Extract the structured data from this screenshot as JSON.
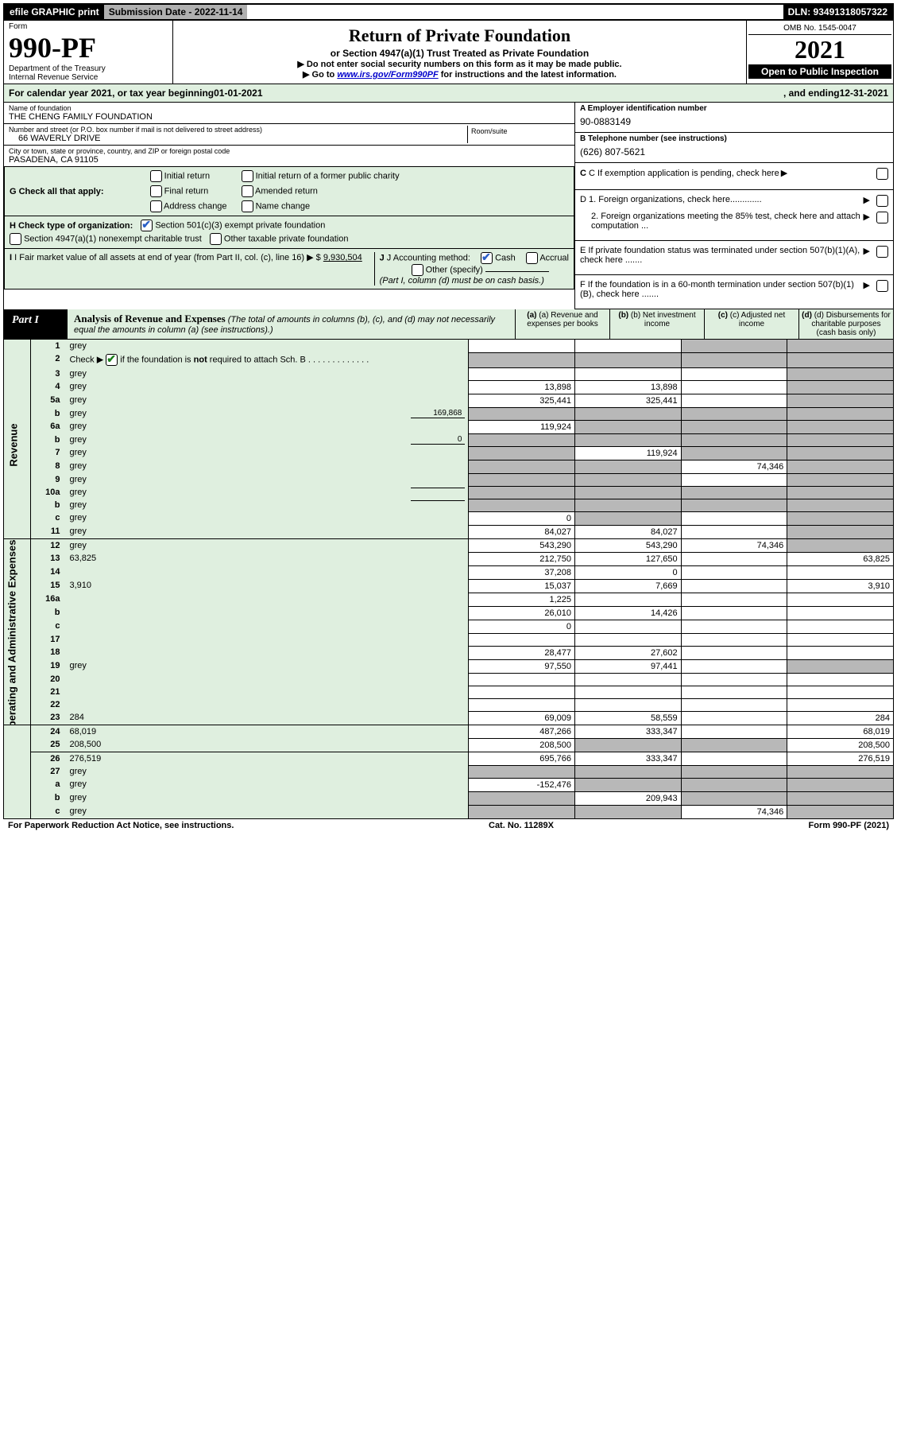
{
  "topbar": {
    "efile": "efile GRAPHIC print",
    "submission": "Submission Date - 2022-11-14",
    "dln": "DLN: 93491318057322"
  },
  "header": {
    "form_label": "Form",
    "form_no": "990-PF",
    "dept": "Department of the Treasury",
    "irs": "Internal Revenue Service",
    "title": "Return of Private Foundation",
    "subtitle": "or Section 4947(a)(1) Trust Treated as Private Foundation",
    "note1": "▶ Do not enter social security numbers on this form as it may be made public.",
    "note2_pre": "▶ Go to ",
    "note2_link": "www.irs.gov/Form990PF",
    "note2_post": " for instructions and the latest information.",
    "omb": "OMB No. 1545-0047",
    "year": "2021",
    "open": "Open to Public Inspection"
  },
  "calendar": {
    "pre": "For calendar year 2021, or tax year beginning ",
    "begin": "01-01-2021",
    "mid": " , and ending ",
    "end": "12-31-2021"
  },
  "entity": {
    "name_label": "Name of foundation",
    "name": "THE CHENG FAMILY FOUNDATION",
    "addr_label": "Number and street (or P.O. box number if mail is not delivered to street address)",
    "addr": "66 WAVERLY DRIVE",
    "room_label": "Room/suite",
    "city_label": "City or town, state or province, country, and ZIP or foreign postal code",
    "city": "PASADENA, CA  91105",
    "ein_label": "A Employer identification number",
    "ein": "90-0883149",
    "phone_label": "B Telephone number (see instructions)",
    "phone": "(626) 807-5621",
    "c_label": "C If exemption application is pending, check here",
    "d1": "D 1. Foreign organizations, check here.............",
    "d2": "2. Foreign organizations meeting the 85% test, check here and attach computation ...",
    "e": "E  If private foundation status was terminated under section 507(b)(1)(A), check here .......",
    "f": "F  If the foundation is in a 60-month termination under section 507(b)(1)(B), check here .......",
    "g_label": "G Check all that apply:",
    "g_opts": [
      "Initial return",
      "Final return",
      "Address change",
      "Initial return of a former public charity",
      "Amended return",
      "Name change"
    ],
    "h_label": "H Check type of organization:",
    "h1": "Section 501(c)(3) exempt private foundation",
    "h2": "Section 4947(a)(1) nonexempt charitable trust",
    "h3": "Other taxable private foundation",
    "i_label": "I Fair market value of all assets at end of year (from Part II, col. (c), line 16) ▶ $",
    "i_val": "9,930,504",
    "j_label": "J Accounting method:",
    "j_cash": "Cash",
    "j_accrual": "Accrual",
    "j_other": "Other (specify)",
    "j_note": "(Part I, column (d) must be on cash basis.)"
  },
  "part1": {
    "label": "Part I",
    "title": "Analysis of Revenue and Expenses",
    "title_note": "(The total of amounts in columns (b), (c), and (d) may not necessarily equal the amounts in column (a) (see instructions).)",
    "col_a": "(a)  Revenue and expenses per books",
    "col_b": "(b)  Net investment income",
    "col_c": "(c)  Adjusted net income",
    "col_d": "(d)  Disbursements for charitable purposes (cash basis only)"
  },
  "side": {
    "revenue": "Revenue",
    "expenses": "Operating and Administrative Expenses"
  },
  "rows": [
    {
      "n": "1",
      "d": "grey",
      "wrap": true,
      "a": "",
      "b": "",
      "c": "grey"
    },
    {
      "n": "2",
      "d": "grey",
      "wrap": true,
      "a": "grey",
      "b": "grey",
      "c": "grey",
      "html": true
    },
    {
      "n": "3",
      "d": "grey",
      "a": "",
      "b": "",
      "c": ""
    },
    {
      "n": "4",
      "d": "grey",
      "a": "13,898",
      "b": "13,898",
      "c": ""
    },
    {
      "n": "5a",
      "d": "grey",
      "a": "325,441",
      "b": "325,441",
      "c": ""
    },
    {
      "n": "b",
      "d": "grey",
      "inline": "169,868",
      "a": "grey",
      "b": "grey",
      "c": "grey"
    },
    {
      "n": "6a",
      "d": "grey",
      "a": "119,924",
      "b": "grey",
      "c": "grey"
    },
    {
      "n": "b",
      "d": "grey",
      "inline": "0",
      "a": "grey",
      "b": "grey",
      "c": "grey"
    },
    {
      "n": "7",
      "d": "grey",
      "a": "grey",
      "b": "119,924",
      "c": "grey"
    },
    {
      "n": "8",
      "d": "grey",
      "a": "grey",
      "b": "grey",
      "c": "74,346"
    },
    {
      "n": "9",
      "d": "grey",
      "a": "grey",
      "b": "grey",
      "c": ""
    },
    {
      "n": "10a",
      "d": "grey",
      "inline": "",
      "a": "grey",
      "b": "grey",
      "c": "grey"
    },
    {
      "n": "b",
      "d": "grey",
      "inline": "",
      "a": "grey",
      "b": "grey",
      "c": "grey"
    },
    {
      "n": "c",
      "d": "grey",
      "a": "0",
      "b": "grey",
      "c": ""
    },
    {
      "n": "11",
      "d": "grey",
      "a": "84,027",
      "b": "84,027",
      "c": ""
    },
    {
      "n": "12",
      "d": "grey",
      "a": "543,290",
      "b": "543,290",
      "c": "74,346",
      "html": true
    },
    {
      "n": "13",
      "d": "63,825",
      "a": "212,750",
      "b": "127,650",
      "c": "",
      "sec": "exp"
    },
    {
      "n": "14",
      "d": "",
      "a": "37,208",
      "b": "0",
      "c": ""
    },
    {
      "n": "15",
      "d": "3,910",
      "a": "15,037",
      "b": "7,669",
      "c": ""
    },
    {
      "n": "16a",
      "d": "",
      "a": "1,225",
      "b": "",
      "c": ""
    },
    {
      "n": "b",
      "d": "",
      "a": "26,010",
      "b": "14,426",
      "c": ""
    },
    {
      "n": "c",
      "d": "",
      "a": "0",
      "b": "",
      "c": ""
    },
    {
      "n": "17",
      "d": "",
      "a": "",
      "b": "",
      "c": ""
    },
    {
      "n": "18",
      "d": "",
      "a": "28,477",
      "b": "27,602",
      "c": ""
    },
    {
      "n": "19",
      "d": "grey",
      "a": "97,550",
      "b": "97,441",
      "c": ""
    },
    {
      "n": "20",
      "d": "",
      "a": "",
      "b": "",
      "c": ""
    },
    {
      "n": "21",
      "d": "",
      "a": "",
      "b": "",
      "c": ""
    },
    {
      "n": "22",
      "d": "",
      "a": "",
      "b": "",
      "c": ""
    },
    {
      "n": "23",
      "d": "284",
      "a": "69,009",
      "b": "58,559",
      "c": ""
    },
    {
      "n": "24",
      "d": "68,019",
      "wrap": true,
      "a": "487,266",
      "b": "333,347",
      "c": "",
      "html": true
    },
    {
      "n": "25",
      "d": "208,500",
      "a": "208,500",
      "b": "grey",
      "c": "grey"
    },
    {
      "n": "26",
      "d": "276,519",
      "wrap": true,
      "a": "695,766",
      "b": "333,347",
      "c": "",
      "html": true
    },
    {
      "n": "27",
      "d": "grey",
      "a": "grey",
      "b": "grey",
      "c": "grey",
      "sec": "end"
    },
    {
      "n": "a",
      "d": "grey",
      "wrap": true,
      "a": "-152,476",
      "b": "grey",
      "c": "grey",
      "html": true
    },
    {
      "n": "b",
      "d": "grey",
      "a": "grey",
      "b": "209,943",
      "c": "grey",
      "html": true
    },
    {
      "n": "c",
      "d": "grey",
      "a": "grey",
      "b": "grey",
      "c": "74,346",
      "html": true
    }
  ],
  "footer": {
    "left": "For Paperwork Reduction Act Notice, see instructions.",
    "mid": "Cat. No. 11289X",
    "right": "Form 990-PF (2021)"
  }
}
